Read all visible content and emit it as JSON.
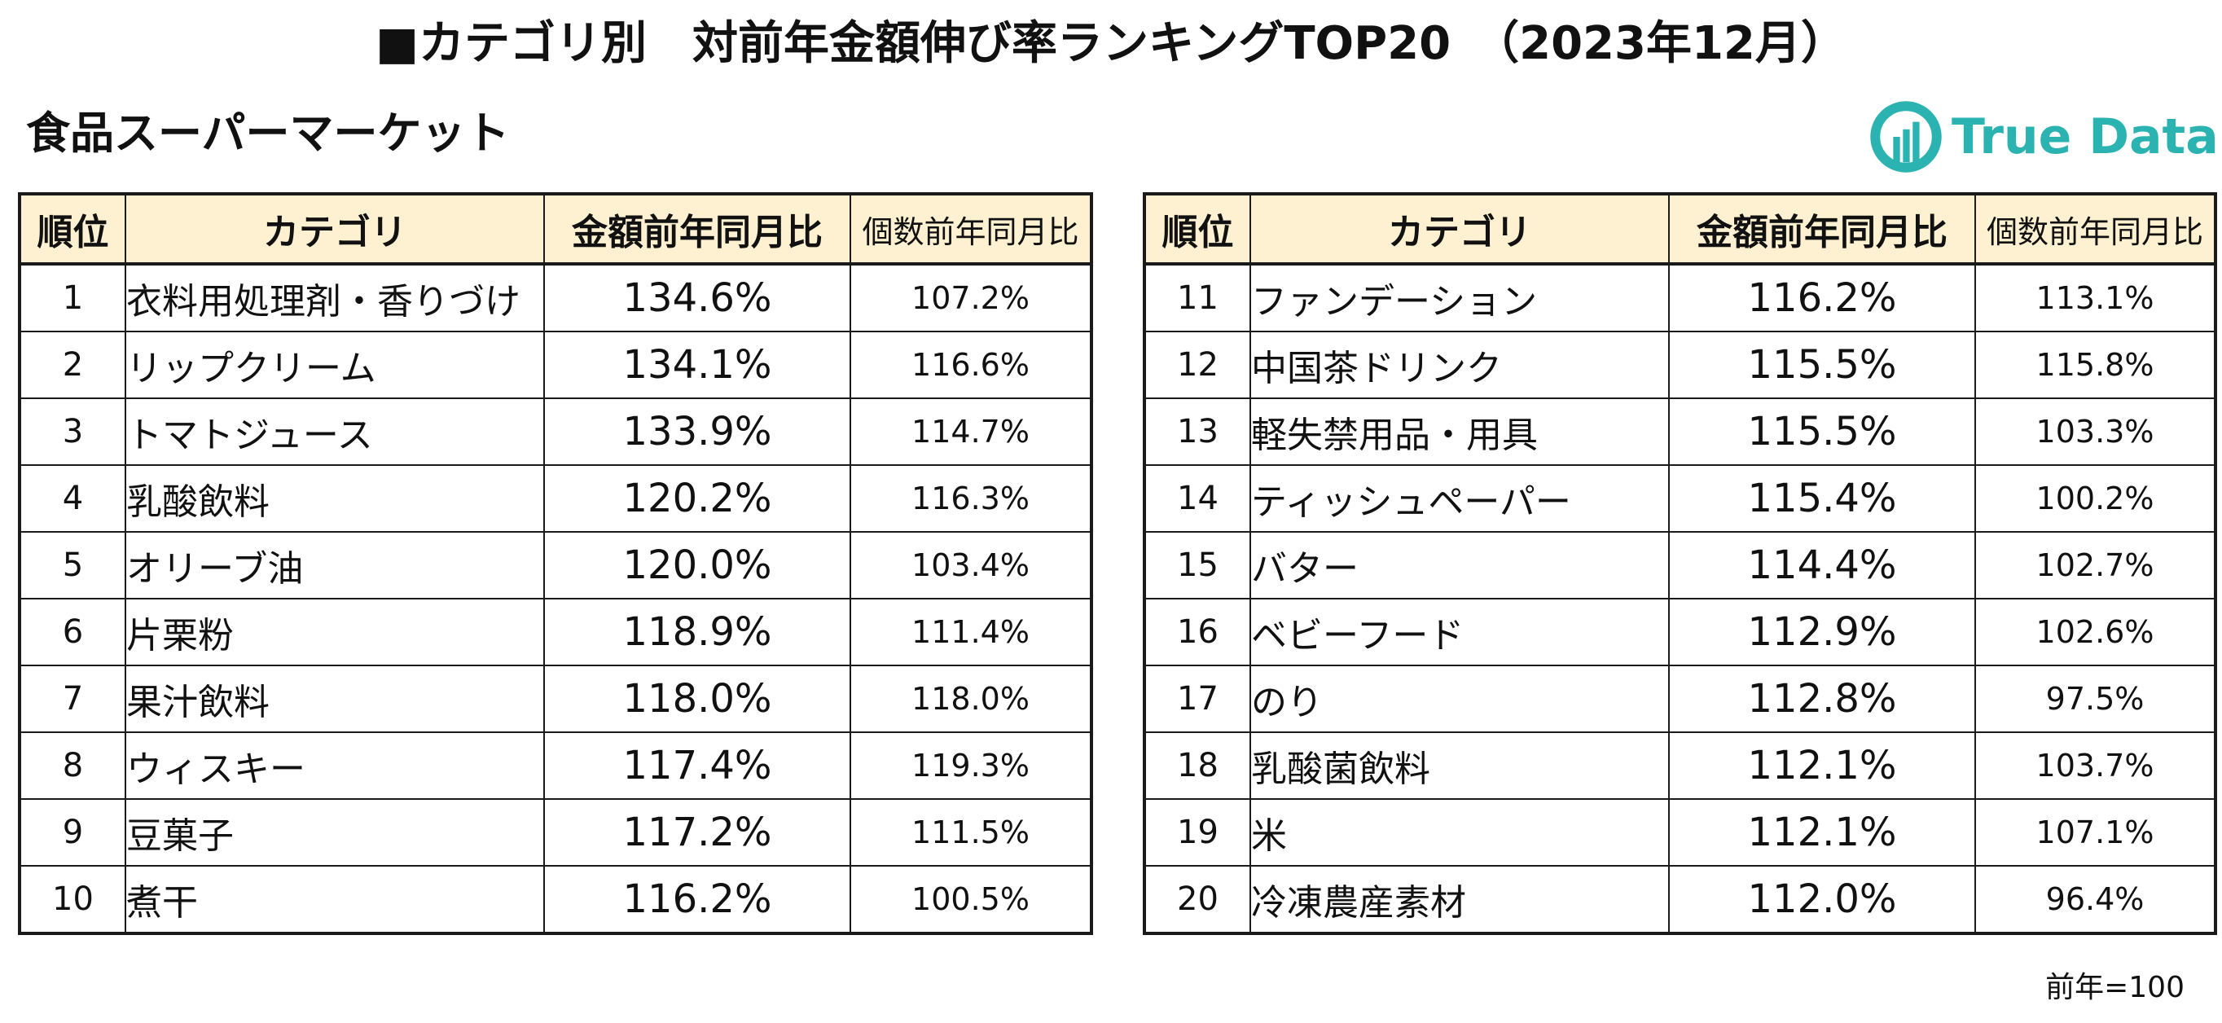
{
  "page_title": "■カテゴリ別　対前年金額伸び率ランキングTOP20　（2023年12月）",
  "section_title": "食品スーパーマーケット",
  "logo": {
    "text": "True Data",
    "icon": "truedata-logo-icon",
    "color": "#2ab3b1"
  },
  "columns": {
    "rank": "順位",
    "category": "カテゴリ",
    "amount_yoy": "金額前年同月比",
    "units_yoy": "個数前年同月比"
  },
  "colors": {
    "header_bg": "#fdf1d1",
    "border": "#1a1a1a"
  },
  "left_rows": [
    {
      "rank": "1",
      "category": "衣料用処理剤・香りづけ",
      "amount": "134.6%",
      "units": "107.2%"
    },
    {
      "rank": "2",
      "category": "リップクリーム",
      "amount": "134.1%",
      "units": "116.6%"
    },
    {
      "rank": "3",
      "category": "トマトジュース",
      "amount": "133.9%",
      "units": "114.7%"
    },
    {
      "rank": "4",
      "category": "乳酸飲料",
      "amount": "120.2%",
      "units": "116.3%"
    },
    {
      "rank": "5",
      "category": "オリーブ油",
      "amount": "120.0%",
      "units": "103.4%"
    },
    {
      "rank": "6",
      "category": "片栗粉",
      "amount": "118.9%",
      "units": "111.4%"
    },
    {
      "rank": "7",
      "category": "果汁飲料",
      "amount": "118.0%",
      "units": "118.0%"
    },
    {
      "rank": "8",
      "category": "ウィスキー",
      "amount": "117.4%",
      "units": "119.3%"
    },
    {
      "rank": "9",
      "category": "豆菓子",
      "amount": "117.2%",
      "units": "111.5%"
    },
    {
      "rank": "10",
      "category": "煮干",
      "amount": "116.2%",
      "units": "100.5%"
    }
  ],
  "right_rows": [
    {
      "rank": "11",
      "category": "ファンデーション",
      "amount": "116.2%",
      "units": "113.1%"
    },
    {
      "rank": "12",
      "category": "中国茶ドリンク",
      "amount": "115.5%",
      "units": "115.8%"
    },
    {
      "rank": "13",
      "category": "軽失禁用品・用具",
      "amount": "115.5%",
      "units": "103.3%"
    },
    {
      "rank": "14",
      "category": "ティッシュペーパー",
      "amount": "115.4%",
      "units": "100.2%"
    },
    {
      "rank": "15",
      "category": "バター",
      "amount": "114.4%",
      "units": "102.7%"
    },
    {
      "rank": "16",
      "category": "ベビーフード",
      "amount": "112.9%",
      "units": "102.6%"
    },
    {
      "rank": "17",
      "category": "のり",
      "amount": "112.8%",
      "units": "97.5%"
    },
    {
      "rank": "18",
      "category": "乳酸菌飲料",
      "amount": "112.1%",
      "units": "103.7%"
    },
    {
      "rank": "19",
      "category": "米",
      "amount": "112.1%",
      "units": "107.1%"
    },
    {
      "rank": "20",
      "category": "冷凍農産素材",
      "amount": "112.0%",
      "units": "96.4%"
    }
  ],
  "footnote": "前年=100"
}
